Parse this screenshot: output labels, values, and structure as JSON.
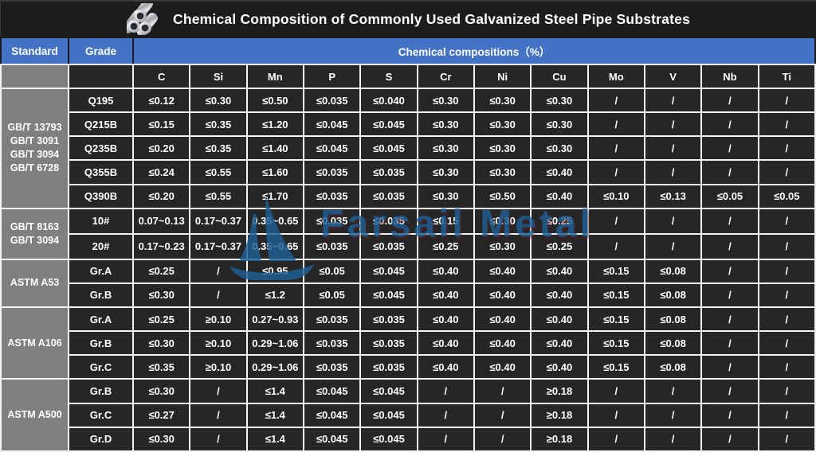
{
  "title": "Chemical Composition of Commonly Used Galvanized Steel Pipe Substrates",
  "watermark": {
    "text": "Farsail Metal"
  },
  "colors": {
    "accent_blue": "#4472C4",
    "cell_dark": "#262626",
    "standard_gray": "#7F7F7F",
    "grid_border": "#F2F2F2",
    "title_bg": "#1C1C1C",
    "watermark_blue": "#1F5F95",
    "text": "#FFFFFF"
  },
  "icons": {
    "title_icon": "steel-pipes-icon",
    "watermark_icon": "sailboat-logo-watermark"
  },
  "chart_data": {
    "type": "table",
    "title": "Chemical Composition of Commonly Used Galvanized Steel Pipe Substrates",
    "header": {
      "standard": "Standard",
      "grade": "Grade",
      "compositions": "Chemical compositions（%）"
    },
    "element_columns": [
      "C",
      "Si",
      "Mn",
      "P",
      "S",
      "Cr",
      "Ni",
      "Cu",
      "Mo",
      "V",
      "Nb",
      "Ti"
    ],
    "groups": [
      {
        "standard_lines": [
          "GB/T 13793",
          "GB/T 3091",
          "GB/T 3094",
          "GB/T 6728"
        ],
        "rows": [
          {
            "grade": "Q195",
            "values": [
              "≤0.12",
              "≤0.30",
              "≤0.50",
              "≤0.035",
              "≤0.040",
              "≤0.30",
              "≤0.30",
              "≤0.30",
              "/",
              "/",
              "/",
              "/"
            ]
          },
          {
            "grade": "Q215B",
            "values": [
              "≤0.15",
              "≤0.35",
              "≤1.20",
              "≤0.045",
              "≤0.045",
              "≤0.30",
              "≤0.30",
              "≤0.30",
              "/",
              "/",
              "/",
              "/"
            ]
          },
          {
            "grade": "Q235B",
            "values": [
              "≤0.20",
              "≤0.35",
              "≤1.40",
              "≤0.045",
              "≤0.045",
              "≤0.30",
              "≤0.30",
              "≤0.30",
              "/",
              "/",
              "/",
              "/"
            ]
          },
          {
            "grade": "Q355B",
            "values": [
              "≤0.24",
              "≤0.55",
              "≤1.60",
              "≤0.035",
              "≤0.035",
              "≤0.30",
              "≤0.30",
              "≤0.40",
              "/",
              "/",
              "/",
              "/"
            ]
          },
          {
            "grade": "Q390B",
            "values": [
              "≤0.20",
              "≤0.55",
              "≤1.70",
              "≤0.035",
              "≤0.035",
              "≤0.30",
              "≤0.50",
              "≤0.40",
              "≤0.10",
              "≤0.13",
              "≤0.05",
              "≤0.05"
            ]
          }
        ]
      },
      {
        "standard_lines": [
          "GB/T 8163",
          "GB/T 3094"
        ],
        "rows": [
          {
            "grade": "10#",
            "values": [
              "0.07~0.13",
              "0.17~0.37",
              "0.35~0.65",
              "≤0.035",
              "≤0.035",
              "≤0.15",
              "≤0.30",
              "≤0.25",
              "/",
              "/",
              "/",
              "/"
            ]
          },
          {
            "grade": "20#",
            "values": [
              "0.17~0.23",
              "0.17~0.37",
              "0.35~0.65",
              "≤0.035",
              "≤0.035",
              "≤0.25",
              "≤0.30",
              "≤0.25",
              "/",
              "/",
              "/",
              "/"
            ]
          }
        ]
      },
      {
        "standard_lines": [
          "ASTM A53"
        ],
        "rows": [
          {
            "grade": "Gr.A",
            "values": [
              "≤0.25",
              "/",
              "≤0.95",
              "≤0.05",
              "≤0.045",
              "≤0.40",
              "≤0.40",
              "≤0.40",
              "≤0.15",
              "≤0.08",
              "/",
              "/"
            ]
          },
          {
            "grade": "Gr.B",
            "values": [
              "≤0.30",
              "/",
              "≤1.2",
              "≤0.05",
              "≤0.045",
              "≤0.40",
              "≤0.40",
              "≤0.40",
              "≤0.15",
              "≤0.08",
              "/",
              "/"
            ]
          }
        ]
      },
      {
        "standard_lines": [
          "ASTM A106"
        ],
        "rows": [
          {
            "grade": "Gr.A",
            "values": [
              "≤0.25",
              "≥0.10",
              "0.27~0.93",
              "≤0.035",
              "≤0.035",
              "≤0.40",
              "≤0.40",
              "≤0.40",
              "≤0.15",
              "≤0.08",
              "/",
              "/"
            ]
          },
          {
            "grade": "Gr.B",
            "values": [
              "≤0.30",
              "≥0.10",
              "0.29~1.06",
              "≤0.035",
              "≤0.035",
              "≤0.40",
              "≤0.40",
              "≤0.40",
              "≤0.15",
              "≤0.08",
              "/",
              "/"
            ]
          },
          {
            "grade": "Gr.C",
            "values": [
              "≤0.35",
              "≥0.10",
              "0.29~1.06",
              "≤0.035",
              "≤0.035",
              "≤0.40",
              "≤0.40",
              "≤0.40",
              "≤0.15",
              "≤0.08",
              "/",
              "/"
            ]
          }
        ]
      },
      {
        "standard_lines": [
          "ASTM A500"
        ],
        "rows": [
          {
            "grade": "Gr.B",
            "values": [
              "≤0.30",
              "/",
              "≤1.4",
              "≤0.045",
              "≤0.045",
              "/",
              "/",
              "≥0.18",
              "/",
              "/",
              "/",
              "/"
            ]
          },
          {
            "grade": "Gr.C",
            "values": [
              "≤0.27",
              "/",
              "≤1.4",
              "≤0.045",
              "≤0.045",
              "/",
              "/",
              "≥0.18",
              "/",
              "/",
              "/",
              "/"
            ]
          },
          {
            "grade": "Gr.D",
            "values": [
              "≤0.30",
              "/",
              "≤1.4",
              "≤0.045",
              "≤0.045",
              "/",
              "/",
              "≥0.18",
              "/",
              "/",
              "/",
              "/"
            ]
          }
        ]
      }
    ]
  }
}
